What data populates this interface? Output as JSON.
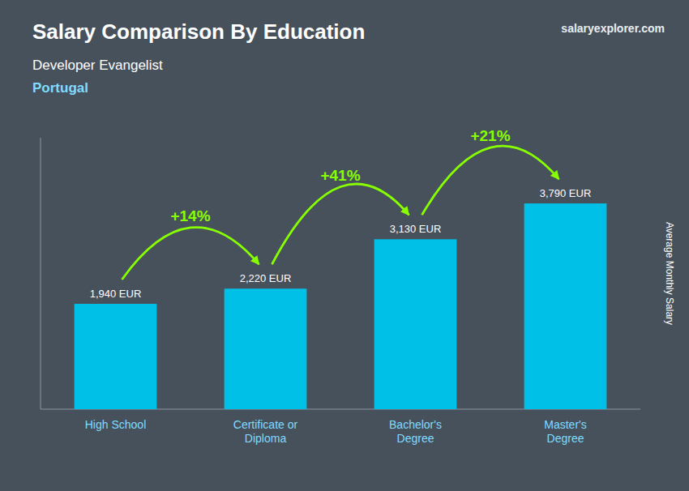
{
  "chart_data": {
    "type": "bar",
    "title": "Salary Comparison By Education",
    "subtitle": [
      "Developer Evangelist",
      "Portugal"
    ],
    "annotations": [
      "salaryexplorer.com"
    ],
    "ylabel": "Average Monthly Salary",
    "categories": [
      "High School",
      "Certificate or\nDiploma",
      "Bachelor's\nDegree",
      "Master's\nDegree"
    ],
    "values": [
      1940,
      2220,
      3130,
      3790
    ],
    "value_labels": [
      "1,940 EUR",
      "2,220 EUR",
      "3,130 EUR",
      "3,790 EUR"
    ],
    "data_labels": true,
    "color": "#00c0e8",
    "changes": {
      "values": [
        14,
        41,
        21
      ],
      "labels": [
        "+14%",
        "+41%",
        "+21%"
      ],
      "color": "#88ff00"
    },
    "ylim": [
      0,
      5000
    ],
    "tick_labels": "x",
    "grid": false
  }
}
